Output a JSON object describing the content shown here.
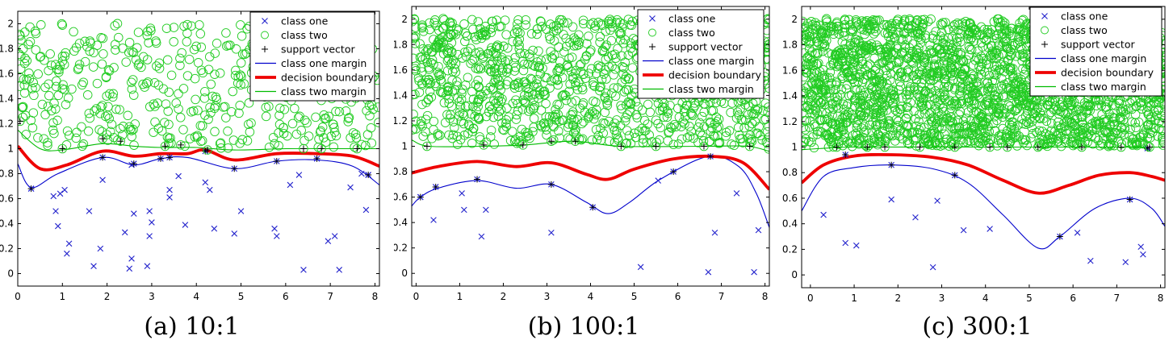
{
  "chart_data": [
    {
      "type": "scatter",
      "caption": "(a) 10:1",
      "xlim": [
        0,
        8.1
      ],
      "ylim": [
        -0.1,
        2.1
      ],
      "xticks": [
        0,
        1,
        2,
        3,
        4,
        5,
        6,
        7,
        8
      ],
      "yticks": [
        0,
        0.2,
        0.4,
        0.6,
        0.8,
        1,
        1.2,
        1.4,
        1.6,
        1.8,
        2
      ],
      "legend": {
        "position": "top-right",
        "entries": [
          "class one",
          "class two",
          "support vector",
          "class one margin",
          "decision boundary",
          "class two margin"
        ]
      },
      "class_two_count": 500,
      "class_one": [
        [
          0.3,
          0.68
        ],
        [
          0.8,
          0.62
        ],
        [
          0.85,
          0.5
        ],
        [
          0.9,
          0.38
        ],
        [
          0.95,
          0.64
        ],
        [
          1.05,
          0.67
        ],
        [
          1.1,
          0.16
        ],
        [
          1.15,
          0.24
        ],
        [
          1.6,
          0.5
        ],
        [
          1.7,
          0.06
        ],
        [
          1.85,
          0.2
        ],
        [
          1.9,
          0.75
        ],
        [
          2.4,
          0.33
        ],
        [
          2.5,
          0.04
        ],
        [
          2.55,
          0.12
        ],
        [
          2.6,
          0.48
        ],
        [
          2.55,
          0.87
        ],
        [
          2.9,
          0.06
        ],
        [
          2.95,
          0.3
        ],
        [
          2.95,
          0.5
        ],
        [
          3.0,
          0.41
        ],
        [
          3.4,
          0.67
        ],
        [
          3.4,
          0.61
        ],
        [
          3.6,
          0.78
        ],
        [
          3.75,
          0.39
        ],
        [
          4.2,
          0.73
        ],
        [
          4.3,
          0.67
        ],
        [
          4.4,
          0.36
        ],
        [
          4.85,
          0.32
        ],
        [
          5.0,
          0.5
        ],
        [
          5.75,
          0.36
        ],
        [
          5.8,
          0.3
        ],
        [
          6.1,
          0.71
        ],
        [
          6.3,
          0.79
        ],
        [
          6.4,
          0.03
        ],
        [
          6.95,
          0.26
        ],
        [
          7.1,
          0.3
        ],
        [
          7.2,
          0.03
        ],
        [
          7.45,
          0.69
        ],
        [
          7.7,
          0.8
        ],
        [
          7.8,
          0.51
        ],
        [
          7.85,
          0.79
        ]
      ],
      "class_one_sv": [
        [
          0.3,
          0.68
        ],
        [
          1.9,
          0.93
        ],
        [
          2.6,
          0.88
        ],
        [
          3.2,
          0.92
        ],
        [
          3.4,
          0.93
        ],
        [
          4.2,
          0.98
        ],
        [
          4.85,
          0.84
        ],
        [
          5.8,
          0.9
        ],
        [
          6.7,
          0.92
        ],
        [
          7.85,
          0.79
        ]
      ],
      "class_two_sv": [
        [
          0.05,
          1.22
        ],
        [
          1.0,
          1.0
        ],
        [
          1.9,
          1.08
        ],
        [
          2.3,
          1.06
        ],
        [
          3.3,
          1.02
        ],
        [
          3.65,
          1.03
        ],
        [
          4.25,
          0.99
        ],
        [
          6.4,
          1.0
        ],
        [
          6.8,
          1.0
        ],
        [
          7.6,
          1.0
        ]
      ],
      "class_one_margin": [
        [
          0,
          0.88
        ],
        [
          0.3,
          0.69
        ],
        [
          0.9,
          0.8
        ],
        [
          1.9,
          0.93
        ],
        [
          2.6,
          0.87
        ],
        [
          3.2,
          0.92
        ],
        [
          3.8,
          0.93
        ],
        [
          4.85,
          0.84
        ],
        [
          5.8,
          0.9
        ],
        [
          6.7,
          0.91
        ],
        [
          7.5,
          0.86
        ],
        [
          8.1,
          0.71
        ]
      ],
      "decision_boundary": [
        [
          0,
          1.02
        ],
        [
          0.5,
          0.84
        ],
        [
          1.1,
          0.87
        ],
        [
          1.9,
          0.98
        ],
        [
          2.6,
          0.94
        ],
        [
          3.2,
          0.96
        ],
        [
          3.8,
          0.96
        ],
        [
          4.2,
          0.99
        ],
        [
          4.85,
          0.91
        ],
        [
          5.8,
          0.96
        ],
        [
          6.7,
          0.96
        ],
        [
          7.5,
          0.94
        ],
        [
          8.1,
          0.86
        ]
      ],
      "class_two_margin": [
        [
          0,
          1.15
        ],
        [
          0.5,
          1.0
        ],
        [
          1.0,
          0.99
        ],
        [
          1.9,
          1.04
        ],
        [
          2.6,
          1.02
        ],
        [
          3.2,
          1.01
        ],
        [
          4.0,
          1.01
        ],
        [
          4.85,
          0.99
        ],
        [
          6.0,
          1.0
        ],
        [
          7.0,
          1.0
        ],
        [
          7.6,
          1.0
        ],
        [
          8.1,
          1.0
        ]
      ]
    },
    {
      "type": "scatter",
      "caption": "(b) 100:1",
      "xlim": [
        -0.1,
        8.1
      ],
      "ylim": [
        -0.1,
        2.1
      ],
      "xticks": [
        0,
        1,
        2,
        3,
        4,
        5,
        6,
        7,
        8
      ],
      "yticks": [
        0,
        0.2,
        0.4,
        0.6,
        0.8,
        1,
        1.2,
        1.4,
        1.6,
        1.8,
        2
      ],
      "legend": {
        "position": "top-right",
        "entries": [
          "class one",
          "class two",
          "support vector",
          "class one margin",
          "decision boundary",
          "class two margin"
        ]
      },
      "class_two_count": 1200,
      "class_one": [
        [
          0.1,
          0.6
        ],
        [
          0.4,
          0.42
        ],
        [
          1.05,
          0.63
        ],
        [
          1.1,
          0.5
        ],
        [
          1.5,
          0.29
        ],
        [
          1.6,
          0.5
        ],
        [
          3.1,
          0.32
        ],
        [
          5.15,
          0.05
        ],
        [
          5.55,
          0.73
        ],
        [
          6.7,
          0.01
        ],
        [
          6.85,
          0.32
        ],
        [
          7.35,
          0.63
        ],
        [
          7.75,
          0.01
        ],
        [
          7.85,
          0.34
        ]
      ],
      "class_one_sv": [
        [
          0.1,
          0.6
        ],
        [
          0.45,
          0.68
        ],
        [
          1.4,
          0.74
        ],
        [
          3.1,
          0.7
        ],
        [
          4.05,
          0.52
        ],
        [
          5.9,
          0.8
        ],
        [
          6.75,
          0.92
        ]
      ],
      "class_two_sv": [
        [
          0.25,
          1.0
        ],
        [
          1.55,
          1.01
        ],
        [
          2.45,
          1.01
        ],
        [
          3.1,
          1.04
        ],
        [
          3.65,
          1.04
        ],
        [
          4.7,
          1.0
        ],
        [
          5.5,
          1.0
        ],
        [
          6.6,
          1.0
        ],
        [
          7.65,
          1.0
        ]
      ],
      "class_one_margin": [
        [
          -0.1,
          0.53
        ],
        [
          0.1,
          0.6
        ],
        [
          0.5,
          0.67
        ],
        [
          1.4,
          0.73
        ],
        [
          2.3,
          0.67
        ],
        [
          3.1,
          0.7
        ],
        [
          3.9,
          0.56
        ],
        [
          4.4,
          0.47
        ],
        [
          4.9,
          0.56
        ],
        [
          5.6,
          0.74
        ],
        [
          6.7,
          0.92
        ],
        [
          7.4,
          0.84
        ],
        [
          7.8,
          0.63
        ],
        [
          8.1,
          0.36
        ]
      ],
      "decision_boundary": [
        [
          -0.1,
          0.79
        ],
        [
          0.5,
          0.84
        ],
        [
          1.4,
          0.88
        ],
        [
          2.3,
          0.84
        ],
        [
          3.1,
          0.87
        ],
        [
          3.9,
          0.78
        ],
        [
          4.4,
          0.74
        ],
        [
          5.0,
          0.82
        ],
        [
          5.9,
          0.9
        ],
        [
          6.8,
          0.92
        ],
        [
          7.5,
          0.87
        ],
        [
          8.1,
          0.66
        ]
      ],
      "class_two_margin": [
        [
          -0.1,
          1.05
        ],
        [
          0.3,
          1.0
        ],
        [
          1.5,
          1.0
        ],
        [
          2.5,
          1.01
        ],
        [
          3.6,
          1.04
        ],
        [
          4.7,
          1.0
        ],
        [
          6.6,
          1.0
        ],
        [
          7.6,
          1.0
        ],
        [
          8.1,
          0.96
        ]
      ]
    },
    {
      "type": "scatter",
      "caption": "(c) 300:1",
      "xlim": [
        -0.2,
        8.1
      ],
      "ylim": [
        -0.1,
        2.1
      ],
      "xticks": [
        0,
        1,
        2,
        3,
        4,
        5,
        6,
        7,
        8
      ],
      "yticks": [
        0,
        0.2,
        0.4,
        0.6,
        0.8,
        1,
        1.2,
        1.4,
        1.6,
        1.8,
        2
      ],
      "legend": {
        "position": "top-right",
        "entries": [
          "class one",
          "class two",
          "support vector",
          "class one margin",
          "decision boundary",
          "class two margin"
        ]
      },
      "class_two_count": 2500,
      "class_one": [
        [
          0.3,
          0.47
        ],
        [
          0.8,
          0.25
        ],
        [
          1.05,
          0.23
        ],
        [
          1.85,
          0.59
        ],
        [
          2.4,
          0.45
        ],
        [
          2.8,
          0.06
        ],
        [
          2.9,
          0.58
        ],
        [
          3.5,
          0.35
        ],
        [
          4.1,
          0.36
        ],
        [
          6.1,
          0.33
        ],
        [
          6.4,
          0.11
        ],
        [
          7.2,
          0.1
        ],
        [
          7.55,
          0.22
        ],
        [
          7.6,
          0.16
        ]
      ],
      "class_one_sv": [
        [
          0.8,
          0.94
        ],
        [
          1.85,
          0.86
        ],
        [
          3.3,
          0.78
        ],
        [
          5.7,
          0.3
        ],
        [
          7.3,
          0.59
        ],
        [
          7.7,
          0.99
        ]
      ],
      "class_two_sv": [
        [
          0.6,
          1.0
        ],
        [
          1.3,
          1.0
        ],
        [
          1.7,
          1.0
        ],
        [
          2.5,
          1.0
        ],
        [
          3.3,
          1.0
        ],
        [
          4.1,
          1.0
        ],
        [
          4.5,
          1.0
        ],
        [
          5.2,
          1.0
        ],
        [
          6.2,
          1.0
        ],
        [
          7.1,
          1.0
        ],
        [
          7.75,
          1.0
        ]
      ],
      "class_one_margin": [
        [
          -0.2,
          0.5
        ],
        [
          0.3,
          0.77
        ],
        [
          1.0,
          0.84
        ],
        [
          1.85,
          0.86
        ],
        [
          2.8,
          0.83
        ],
        [
          3.6,
          0.72
        ],
        [
          4.4,
          0.47
        ],
        [
          5.2,
          0.21
        ],
        [
          5.7,
          0.3
        ],
        [
          6.5,
          0.52
        ],
        [
          7.3,
          0.6
        ],
        [
          7.8,
          0.52
        ],
        [
          8.1,
          0.38
        ]
      ],
      "decision_boundary": [
        [
          -0.2,
          0.72
        ],
        [
          0.3,
          0.86
        ],
        [
          1.0,
          0.93
        ],
        [
          1.85,
          0.94
        ],
        [
          2.8,
          0.92
        ],
        [
          3.6,
          0.86
        ],
        [
          4.4,
          0.74
        ],
        [
          5.2,
          0.64
        ],
        [
          5.9,
          0.7
        ],
        [
          6.6,
          0.78
        ],
        [
          7.3,
          0.8
        ],
        [
          7.8,
          0.77
        ],
        [
          8.1,
          0.74
        ]
      ],
      "class_two_margin": [
        [
          -0.2,
          0.98
        ],
        [
          0.3,
          0.99
        ],
        [
          1.0,
          1.0
        ],
        [
          3.0,
          1.0
        ],
        [
          5.0,
          1.0
        ],
        [
          7.0,
          1.0
        ],
        [
          8.1,
          1.0
        ]
      ]
    }
  ],
  "colors": {
    "class_one": "#2222cc",
    "class_two": "#22cc22",
    "support_vector": "#000000",
    "class_one_margin": "#0000cc",
    "decision_boundary": "#ee0000",
    "class_two_margin": "#00bb00"
  }
}
